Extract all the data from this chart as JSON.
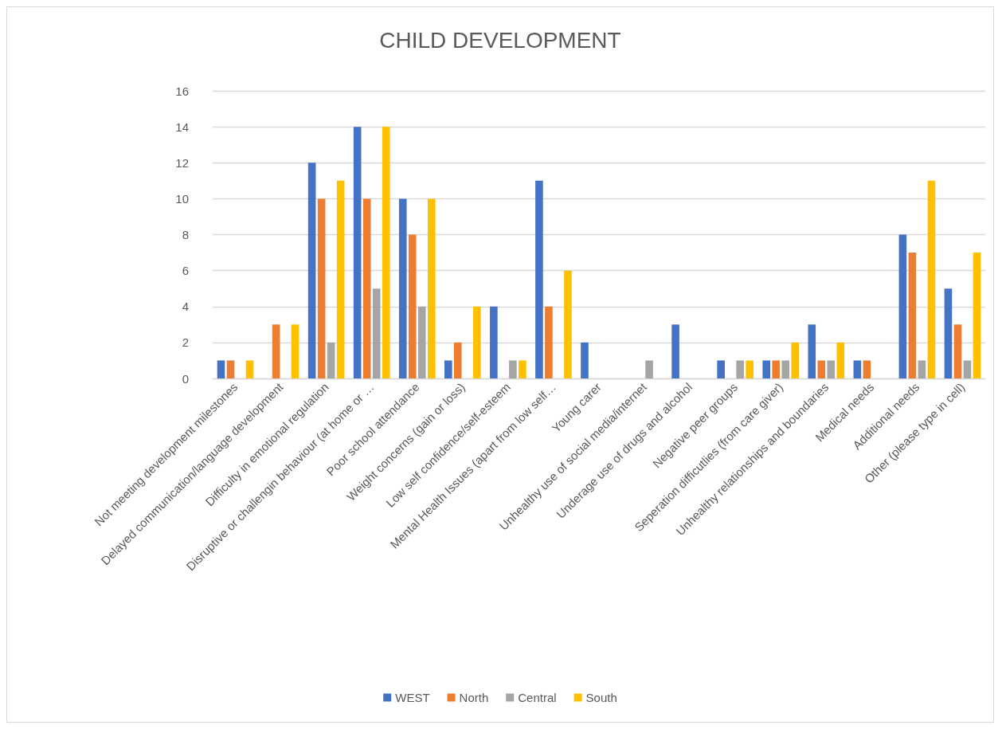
{
  "chart_data": {
    "type": "bar",
    "title": "CHILD DEVELOPMENT",
    "categories": [
      "Not meeting development milestones",
      "Delayed communication/language development",
      "Difficulty in emotional regulation",
      "Disruptive or challengin behaviour (at home or …",
      "Poor school attendance",
      "Weight concerns (gain or loss)",
      "Low self confidence/self-esteem",
      "Mental Health Issues (apart from low self…",
      "Young carer",
      "Unhealthy use of social media/internet",
      "Underage use of drugs and alcohol",
      "Negative peer groups",
      "Seperation difficutlies (from care giver)",
      "Unhealthy relationships and boundaries",
      "Medical needs",
      "Additional needs",
      "Other (please type in cell)"
    ],
    "series": [
      {
        "name": "WEST",
        "color": "#4472c4",
        "values": [
          1,
          null,
          12,
          14,
          10,
          1,
          4,
          11,
          2,
          null,
          3,
          1,
          1,
          3,
          1,
          8,
          5
        ]
      },
      {
        "name": "North",
        "color": "#ed7d31",
        "values": [
          1,
          3,
          10,
          10,
          8,
          2,
          null,
          4,
          null,
          null,
          null,
          null,
          1,
          1,
          1,
          7,
          3
        ]
      },
      {
        "name": "Central",
        "color": "#a5a5a5",
        "values": [
          null,
          null,
          2,
          5,
          4,
          null,
          1,
          null,
          null,
          1,
          null,
          1,
          1,
          1,
          null,
          1,
          1
        ]
      },
      {
        "name": "South",
        "color": "#ffc000",
        "values": [
          1,
          3,
          11,
          14,
          10,
          4,
          1,
          6,
          null,
          null,
          null,
          1,
          2,
          2,
          null,
          11,
          7
        ]
      }
    ],
    "ylim": [
      0,
      16
    ],
    "yticks": [
      0,
      2,
      4,
      6,
      8,
      10,
      12,
      14,
      16
    ],
    "grid": "y",
    "legend": "bottom"
  }
}
